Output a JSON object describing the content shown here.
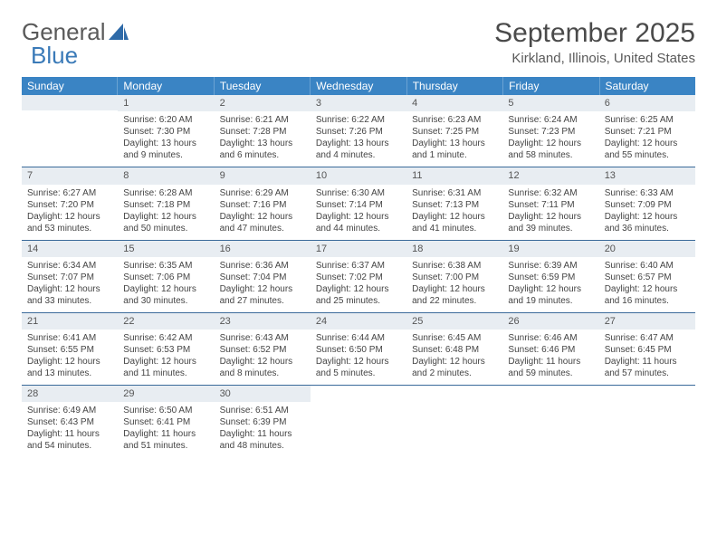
{
  "logo": {
    "text_a": "General",
    "text_b": "Blue"
  },
  "title": "September 2025",
  "location": "Kirkland, Illinois, United States",
  "colors": {
    "header_bg": "#3a84c4",
    "header_text": "#ffffff",
    "daynum_bg": "#e8edf2",
    "daynum_text": "#555555",
    "row_border": "#3a6a9a",
    "body_text": "#444444",
    "logo_gray": "#5a5a5a",
    "logo_blue": "#3a7ab8"
  },
  "weekdays": [
    "Sunday",
    "Monday",
    "Tuesday",
    "Wednesday",
    "Thursday",
    "Friday",
    "Saturday"
  ],
  "weeks": [
    [
      {
        "day": "",
        "sunrise": "",
        "sunset": "",
        "daylight": ""
      },
      {
        "day": "1",
        "sunrise": "Sunrise: 6:20 AM",
        "sunset": "Sunset: 7:30 PM",
        "daylight": "Daylight: 13 hours and 9 minutes."
      },
      {
        "day": "2",
        "sunrise": "Sunrise: 6:21 AM",
        "sunset": "Sunset: 7:28 PM",
        "daylight": "Daylight: 13 hours and 6 minutes."
      },
      {
        "day": "3",
        "sunrise": "Sunrise: 6:22 AM",
        "sunset": "Sunset: 7:26 PM",
        "daylight": "Daylight: 13 hours and 4 minutes."
      },
      {
        "day": "4",
        "sunrise": "Sunrise: 6:23 AM",
        "sunset": "Sunset: 7:25 PM",
        "daylight": "Daylight: 13 hours and 1 minute."
      },
      {
        "day": "5",
        "sunrise": "Sunrise: 6:24 AM",
        "sunset": "Sunset: 7:23 PM",
        "daylight": "Daylight: 12 hours and 58 minutes."
      },
      {
        "day": "6",
        "sunrise": "Sunrise: 6:25 AM",
        "sunset": "Sunset: 7:21 PM",
        "daylight": "Daylight: 12 hours and 55 minutes."
      }
    ],
    [
      {
        "day": "7",
        "sunrise": "Sunrise: 6:27 AM",
        "sunset": "Sunset: 7:20 PM",
        "daylight": "Daylight: 12 hours and 53 minutes."
      },
      {
        "day": "8",
        "sunrise": "Sunrise: 6:28 AM",
        "sunset": "Sunset: 7:18 PM",
        "daylight": "Daylight: 12 hours and 50 minutes."
      },
      {
        "day": "9",
        "sunrise": "Sunrise: 6:29 AM",
        "sunset": "Sunset: 7:16 PM",
        "daylight": "Daylight: 12 hours and 47 minutes."
      },
      {
        "day": "10",
        "sunrise": "Sunrise: 6:30 AM",
        "sunset": "Sunset: 7:14 PM",
        "daylight": "Daylight: 12 hours and 44 minutes."
      },
      {
        "day": "11",
        "sunrise": "Sunrise: 6:31 AM",
        "sunset": "Sunset: 7:13 PM",
        "daylight": "Daylight: 12 hours and 41 minutes."
      },
      {
        "day": "12",
        "sunrise": "Sunrise: 6:32 AM",
        "sunset": "Sunset: 7:11 PM",
        "daylight": "Daylight: 12 hours and 39 minutes."
      },
      {
        "day": "13",
        "sunrise": "Sunrise: 6:33 AM",
        "sunset": "Sunset: 7:09 PM",
        "daylight": "Daylight: 12 hours and 36 minutes."
      }
    ],
    [
      {
        "day": "14",
        "sunrise": "Sunrise: 6:34 AM",
        "sunset": "Sunset: 7:07 PM",
        "daylight": "Daylight: 12 hours and 33 minutes."
      },
      {
        "day": "15",
        "sunrise": "Sunrise: 6:35 AM",
        "sunset": "Sunset: 7:06 PM",
        "daylight": "Daylight: 12 hours and 30 minutes."
      },
      {
        "day": "16",
        "sunrise": "Sunrise: 6:36 AM",
        "sunset": "Sunset: 7:04 PM",
        "daylight": "Daylight: 12 hours and 27 minutes."
      },
      {
        "day": "17",
        "sunrise": "Sunrise: 6:37 AM",
        "sunset": "Sunset: 7:02 PM",
        "daylight": "Daylight: 12 hours and 25 minutes."
      },
      {
        "day": "18",
        "sunrise": "Sunrise: 6:38 AM",
        "sunset": "Sunset: 7:00 PM",
        "daylight": "Daylight: 12 hours and 22 minutes."
      },
      {
        "day": "19",
        "sunrise": "Sunrise: 6:39 AM",
        "sunset": "Sunset: 6:59 PM",
        "daylight": "Daylight: 12 hours and 19 minutes."
      },
      {
        "day": "20",
        "sunrise": "Sunrise: 6:40 AM",
        "sunset": "Sunset: 6:57 PM",
        "daylight": "Daylight: 12 hours and 16 minutes."
      }
    ],
    [
      {
        "day": "21",
        "sunrise": "Sunrise: 6:41 AM",
        "sunset": "Sunset: 6:55 PM",
        "daylight": "Daylight: 12 hours and 13 minutes."
      },
      {
        "day": "22",
        "sunrise": "Sunrise: 6:42 AM",
        "sunset": "Sunset: 6:53 PM",
        "daylight": "Daylight: 12 hours and 11 minutes."
      },
      {
        "day": "23",
        "sunrise": "Sunrise: 6:43 AM",
        "sunset": "Sunset: 6:52 PM",
        "daylight": "Daylight: 12 hours and 8 minutes."
      },
      {
        "day": "24",
        "sunrise": "Sunrise: 6:44 AM",
        "sunset": "Sunset: 6:50 PM",
        "daylight": "Daylight: 12 hours and 5 minutes."
      },
      {
        "day": "25",
        "sunrise": "Sunrise: 6:45 AM",
        "sunset": "Sunset: 6:48 PM",
        "daylight": "Daylight: 12 hours and 2 minutes."
      },
      {
        "day": "26",
        "sunrise": "Sunrise: 6:46 AM",
        "sunset": "Sunset: 6:46 PM",
        "daylight": "Daylight: 11 hours and 59 minutes."
      },
      {
        "day": "27",
        "sunrise": "Sunrise: 6:47 AM",
        "sunset": "Sunset: 6:45 PM",
        "daylight": "Daylight: 11 hours and 57 minutes."
      }
    ],
    [
      {
        "day": "28",
        "sunrise": "Sunrise: 6:49 AM",
        "sunset": "Sunset: 6:43 PM",
        "daylight": "Daylight: 11 hours and 54 minutes."
      },
      {
        "day": "29",
        "sunrise": "Sunrise: 6:50 AM",
        "sunset": "Sunset: 6:41 PM",
        "daylight": "Daylight: 11 hours and 51 minutes."
      },
      {
        "day": "30",
        "sunrise": "Sunrise: 6:51 AM",
        "sunset": "Sunset: 6:39 PM",
        "daylight": "Daylight: 11 hours and 48 minutes."
      },
      {
        "day": "",
        "sunrise": "",
        "sunset": "",
        "daylight": ""
      },
      {
        "day": "",
        "sunrise": "",
        "sunset": "",
        "daylight": ""
      },
      {
        "day": "",
        "sunrise": "",
        "sunset": "",
        "daylight": ""
      },
      {
        "day": "",
        "sunrise": "",
        "sunset": "",
        "daylight": ""
      }
    ]
  ]
}
